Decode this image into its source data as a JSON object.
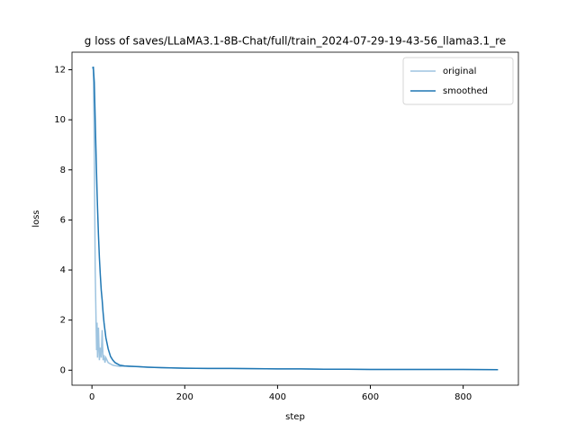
{
  "chart_data": {
    "type": "line",
    "title": "g loss of saves/LLaMA3.1-8B-Chat/full/train_2024-07-29-19-43-56_llama3.1_re",
    "xlabel": "step",
    "ylabel": "loss",
    "x": [
      1,
      3,
      5,
      7,
      9,
      10,
      11,
      12,
      14,
      16,
      18,
      20,
      22,
      24,
      26,
      28,
      30,
      35,
      40,
      45,
      50,
      60,
      70,
      80,
      100,
      120,
      150,
      200,
      250,
      300,
      350,
      400,
      450,
      500,
      550,
      600,
      700,
      800,
      875
    ],
    "series": [
      {
        "name": "original",
        "color": "#9ec4e0",
        "values": [
          12.1,
          12.0,
          9,
          4,
          1.8,
          0.8,
          1.9,
          0.5,
          1.7,
          0.4,
          0.9,
          0.5,
          1.6,
          0.4,
          0.6,
          0.3,
          0.5,
          0.3,
          0.25,
          0.2,
          0.18,
          0.15,
          0.17,
          0.15,
          0.14,
          0.12,
          0.1,
          0.08,
          0.07,
          0.07,
          0.06,
          0.05,
          0.05,
          0.04,
          0.04,
          0.03,
          0.03,
          0.03,
          0.02
        ]
      },
      {
        "name": "smoothed",
        "color": "#1f77b4",
        "values": [
          12.1,
          12.1,
          11.5,
          10,
          8.5,
          7.8,
          7.1,
          6.5,
          5.4,
          4.5,
          3.8,
          3.2,
          2.8,
          2.3,
          1.9,
          1.6,
          1.3,
          0.85,
          0.55,
          0.4,
          0.3,
          0.2,
          0.17,
          0.16,
          0.14,
          0.12,
          0.1,
          0.08,
          0.07,
          0.07,
          0.06,
          0.05,
          0.05,
          0.04,
          0.04,
          0.03,
          0.03,
          0.03,
          0.02
        ]
      }
    ],
    "xlim": [
      -43,
      919
    ],
    "ylim": [
      -0.6,
      12.7
    ],
    "xticks": [
      0,
      200,
      400,
      600,
      800
    ],
    "yticks": [
      0,
      2,
      4,
      6,
      8,
      10,
      12
    ],
    "legend": "upper right"
  }
}
